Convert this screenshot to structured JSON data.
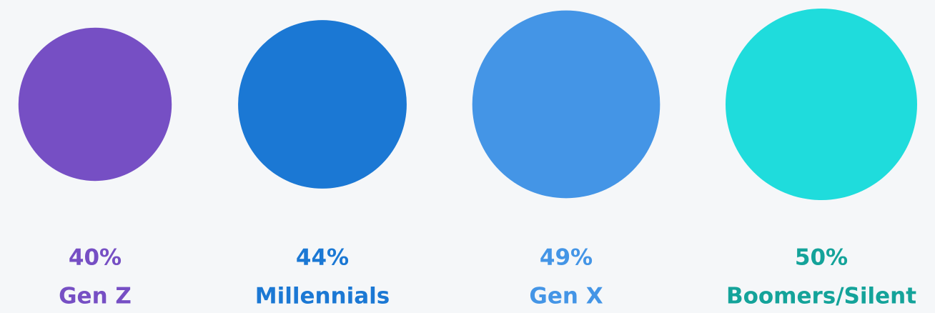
{
  "chart_data": {
    "type": "bubble",
    "categories": [
      "Gen Z",
      "Millennials",
      "Gen X",
      "Boomers/Silent"
    ],
    "values": [
      40,
      44,
      49,
      50
    ],
    "value_labels": [
      "40%",
      "44%",
      "49%",
      "50%"
    ],
    "colors": [
      "#764fc4",
      "#1b78d4",
      "#4495e6",
      "#1fdcdc"
    ],
    "label_colors": [
      "#764fc4",
      "#1b78d4",
      "#4495e6",
      "#14a39a"
    ]
  }
}
